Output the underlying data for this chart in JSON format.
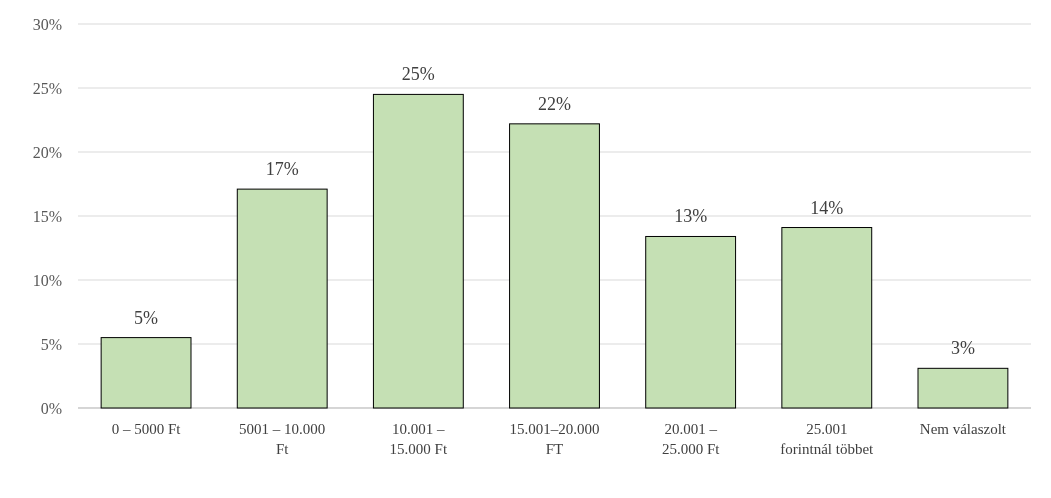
{
  "chart_data": {
    "type": "bar",
    "categories": [
      "0 – 5000 Ft",
      "5001 – 10.000 Ft",
      "10.001 – 15.000 Ft",
      "15.001–20.000 FT",
      "20.001 – 25.000 Ft",
      "25.001 forintnál többet",
      "Nem válaszolt"
    ],
    "values": [
      5.5,
      17.1,
      24.5,
      22.2,
      13.4,
      14.1,
      3.1
    ],
    "value_labels": [
      "5%",
      "17%",
      "25%",
      "22%",
      "13%",
      "14%",
      "3%"
    ],
    "color": "#c5e0b4",
    "ylim": [
      0,
      30
    ],
    "yticks": [
      {
        "value": 0,
        "label": "0%"
      },
      {
        "value": 5,
        "label": "5%"
      },
      {
        "value": 10,
        "label": "10%"
      },
      {
        "value": 15,
        "label": "15%"
      },
      {
        "value": 20,
        "label": "20%"
      },
      {
        "value": 25,
        "label": "25%"
      },
      {
        "value": 30,
        "label": "30%"
      }
    ],
    "grid": "y"
  }
}
